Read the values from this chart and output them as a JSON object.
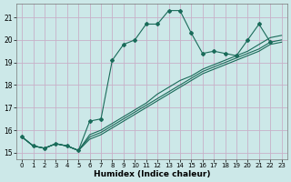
{
  "xlabel": "Humidex (Indice chaleur)",
  "ylabel": "",
  "bg_color": "#cce8e8",
  "grid_color": "#c8b0c8",
  "line_color": "#1a6b5a",
  "xlim": [
    -0.5,
    23.5
  ],
  "ylim": [
    14.7,
    21.6
  ],
  "xticks": [
    0,
    1,
    2,
    3,
    4,
    5,
    6,
    7,
    8,
    9,
    10,
    11,
    12,
    13,
    14,
    15,
    16,
    17,
    18,
    19,
    20,
    21,
    22,
    23
  ],
  "yticks": [
    15,
    16,
    17,
    18,
    19,
    20,
    21
  ],
  "series_jagged": {
    "x": [
      0,
      1,
      2,
      3,
      4,
      5,
      6,
      7,
      8,
      9,
      10,
      11,
      12,
      13,
      14,
      15,
      16,
      17,
      18,
      19,
      20,
      21,
      22
    ],
    "y": [
      15.7,
      15.3,
      15.2,
      15.4,
      15.3,
      15.1,
      16.4,
      16.5,
      19.1,
      19.8,
      20.0,
      20.7,
      20.7,
      21.3,
      21.3,
      20.3,
      19.4,
      19.5,
      19.4,
      19.3,
      20.0,
      20.7,
      19.9
    ]
  },
  "series_linear": [
    {
      "x": [
        0,
        1,
        2,
        3,
        4,
        5,
        6,
        7,
        8,
        9,
        10,
        11,
        12,
        13,
        14,
        15,
        16,
        17,
        18,
        19,
        20,
        21,
        22,
        23
      ],
      "y": [
        15.7,
        15.3,
        15.2,
        15.4,
        15.3,
        15.1,
        15.6,
        15.8,
        16.1,
        16.4,
        16.7,
        17.0,
        17.3,
        17.6,
        17.9,
        18.2,
        18.5,
        18.7,
        18.9,
        19.1,
        19.3,
        19.5,
        19.8,
        19.9
      ]
    },
    {
      "x": [
        0,
        1,
        2,
        3,
        4,
        5,
        6,
        7,
        8,
        9,
        10,
        11,
        12,
        13,
        14,
        15,
        16,
        17,
        18,
        19,
        20,
        21,
        22,
        23
      ],
      "y": [
        15.7,
        15.3,
        15.2,
        15.4,
        15.3,
        15.1,
        15.7,
        15.9,
        16.2,
        16.5,
        16.8,
        17.1,
        17.4,
        17.7,
        18.0,
        18.3,
        18.6,
        18.8,
        19.0,
        19.2,
        19.4,
        19.6,
        19.9,
        20.0
      ]
    },
    {
      "x": [
        0,
        1,
        2,
        3,
        4,
        5,
        6,
        7,
        8,
        9,
        10,
        11,
        12,
        13,
        14,
        15,
        16,
        17,
        18,
        19,
        20,
        21,
        22,
        23
      ],
      "y": [
        15.7,
        15.3,
        15.2,
        15.4,
        15.3,
        15.1,
        15.8,
        16.0,
        16.3,
        16.6,
        16.9,
        17.2,
        17.6,
        17.9,
        18.2,
        18.4,
        18.7,
        18.9,
        19.1,
        19.3,
        19.5,
        19.8,
        20.1,
        20.2
      ]
    }
  ]
}
